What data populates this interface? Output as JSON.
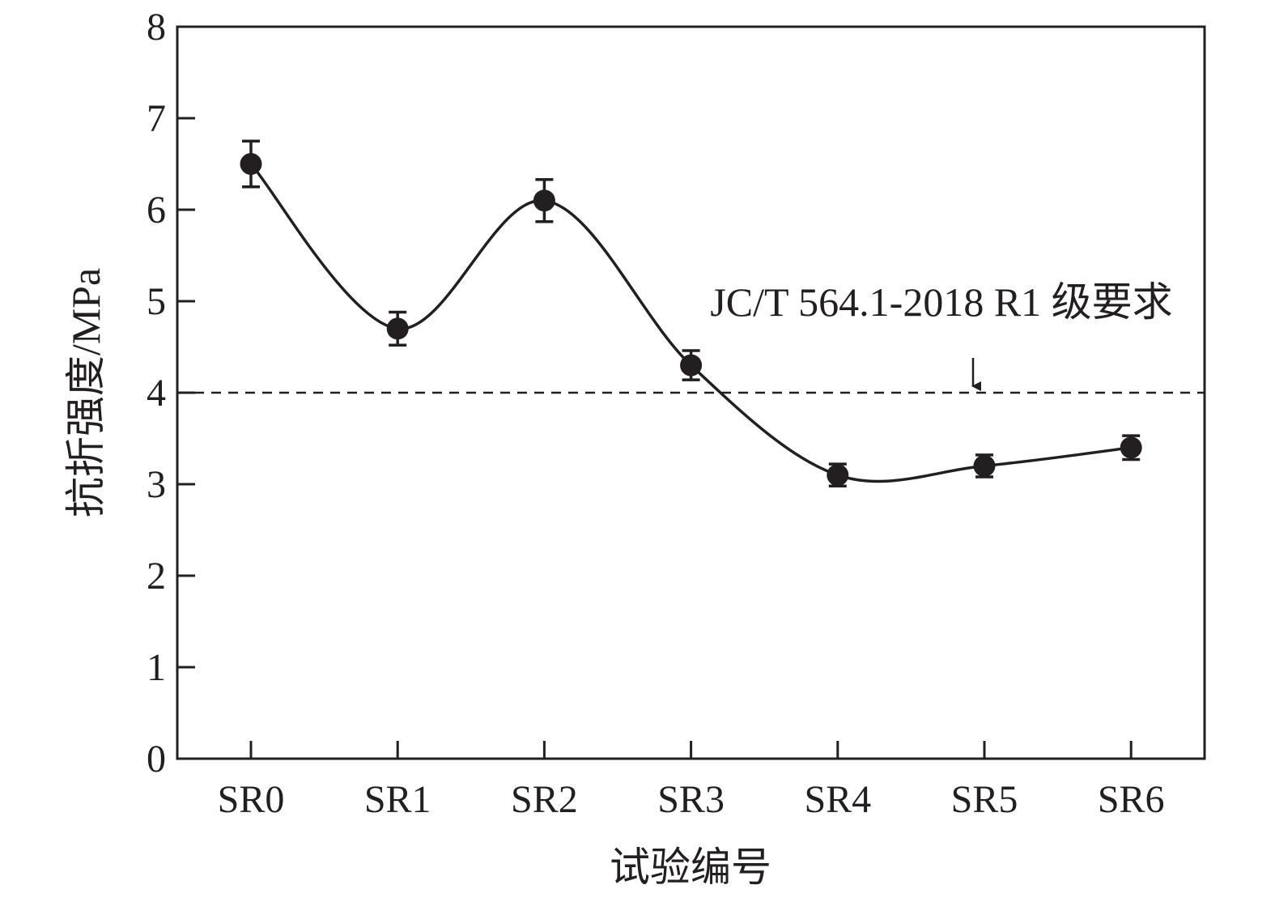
{
  "chart_data": {
    "type": "line",
    "title": "",
    "xlabel": "试验编号",
    "ylabel": "抗折强度/MPa",
    "categories": [
      "SR0",
      "SR1",
      "SR2",
      "SR3",
      "SR4",
      "SR5",
      "SR6"
    ],
    "ylim": [
      0,
      8
    ],
    "yticks": [
      "0",
      "1",
      "2",
      "3",
      "4",
      "5",
      "6",
      "7",
      "8"
    ],
    "grid": false,
    "series": [
      {
        "values": [
          6.5,
          4.7,
          6.1,
          4.3,
          3.1,
          3.2,
          3.4
        ],
        "errors": [
          0.25,
          0.18,
          0.23,
          0.16,
          0.12,
          0.12,
          0.13
        ],
        "marker": "filled-circle",
        "line": "smooth-solid"
      }
    ],
    "reference_line": {
      "value": 4,
      "style": "dashed",
      "label": "JC/T 564.1-2018 R1 级要求",
      "arrow": "down"
    },
    "colors": {
      "ink": "#231f20",
      "background": "#ffffff"
    }
  }
}
